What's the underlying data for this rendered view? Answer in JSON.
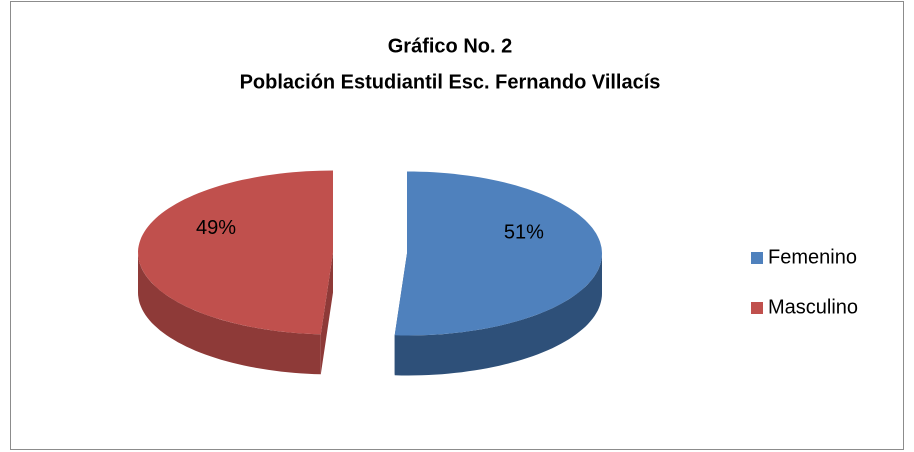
{
  "chart_data": {
    "type": "pie",
    "title": [
      "Gráfico No. 2",
      "Población Estudiantil Esc. Fernando Villacís"
    ],
    "categories": [
      "Femenino",
      "Masculino"
    ],
    "values": [
      51,
      49
    ],
    "value_labels": [
      "51%",
      "49%"
    ],
    "colors": [
      "#4F81BD",
      "#C0504D"
    ],
    "side_colors": [
      "#2E5079",
      "#8E3A38"
    ],
    "legend": "right",
    "exploded": true,
    "three_d": true
  }
}
